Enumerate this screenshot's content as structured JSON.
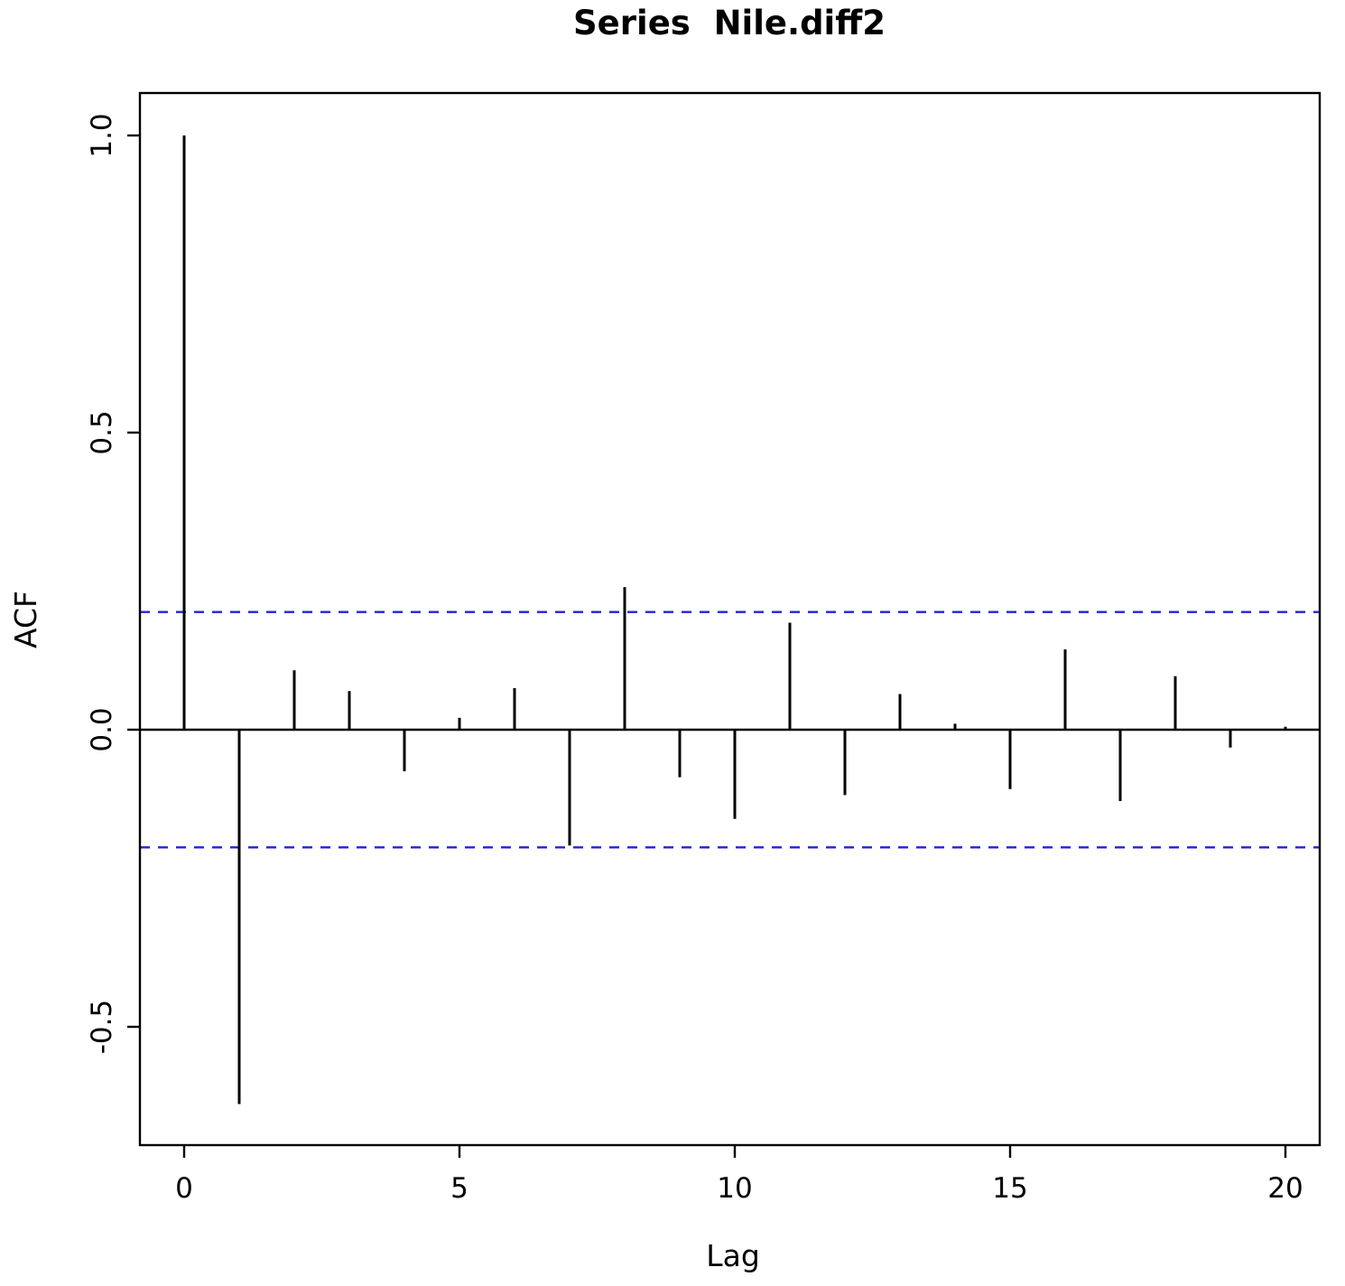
{
  "chart_data": {
    "type": "bar",
    "subtype": "acf-stem-plot",
    "title": "Series  Nile.diff2",
    "xlabel": "Lag",
    "ylabel": "ACF",
    "x_ticks": [
      0,
      5,
      10,
      15,
      20
    ],
    "x_tick_labels": [
      "0",
      "5",
      "10",
      "15",
      "20"
    ],
    "y_ticks": [
      -0.5,
      0.0,
      0.5,
      1.0
    ],
    "y_tick_labels": [
      "-0.5",
      "0.0",
      "0.5",
      "1.0"
    ],
    "xlim": [
      -0.8,
      20.6
    ],
    "ylim": [
      -0.7,
      1.07
    ],
    "grid": false,
    "legend": "none",
    "lags": [
      0,
      1,
      2,
      3,
      4,
      5,
      6,
      7,
      8,
      9,
      10,
      11,
      12,
      13,
      14,
      15,
      16,
      17,
      18,
      19,
      20
    ],
    "values": [
      1.0,
      -0.63,
      0.1,
      0.065,
      -0.07,
      0.02,
      0.07,
      -0.195,
      0.24,
      -0.08,
      -0.15,
      0.18,
      -0.11,
      0.06,
      0.01,
      -0.1,
      0.135,
      -0.12,
      0.09,
      -0.03,
      0.005
    ],
    "confidence_bounds": [
      0.198,
      -0.198
    ],
    "confidence_style": "dashed",
    "colors": {
      "bar": "#000000",
      "axis": "#000000",
      "confidence": "#2222dd",
      "background": "#ffffff"
    }
  }
}
